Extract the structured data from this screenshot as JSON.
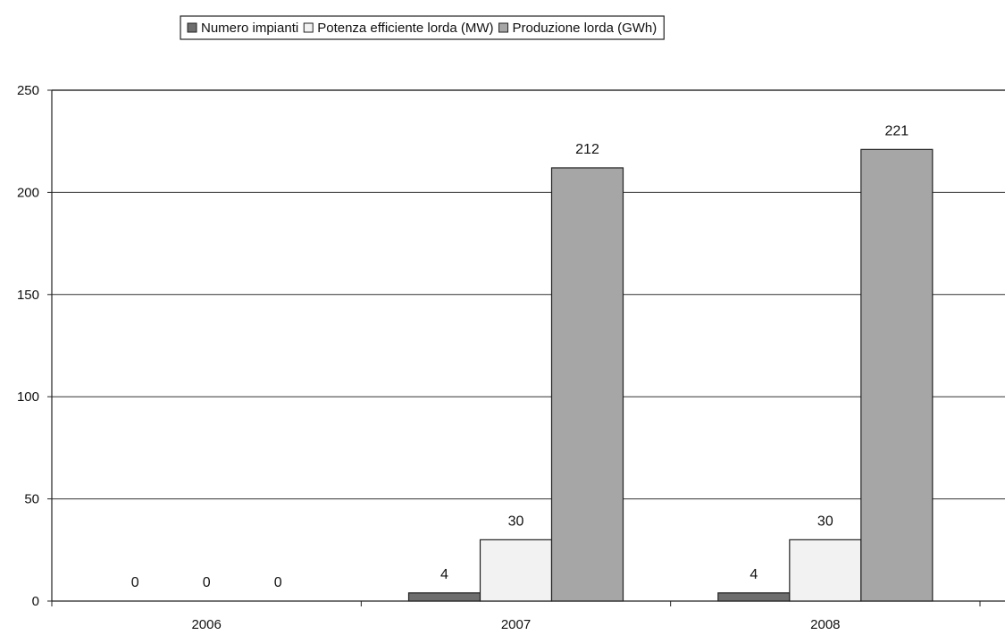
{
  "chart_data": {
    "type": "bar",
    "categories": [
      "2006",
      "2007",
      "2008"
    ],
    "series": [
      {
        "name": "Numero impianti",
        "values": [
          0,
          4,
          4
        ],
        "color": "#6e6e6e"
      },
      {
        "name": "Potenza efficiente lorda (MW)",
        "values": [
          0,
          30,
          30
        ],
        "color": "#f2f2f2"
      },
      {
        "name": "Produzione lorda (GWh)",
        "values": [
          0,
          212,
          221
        ],
        "color": "#a6a6a6"
      }
    ],
    "ylim": [
      0,
      250
    ],
    "yticks": [
      0,
      50,
      100,
      150,
      200,
      250
    ],
    "grid": true,
    "legend_position": "top-center",
    "xlabel": "",
    "ylabel": ""
  }
}
